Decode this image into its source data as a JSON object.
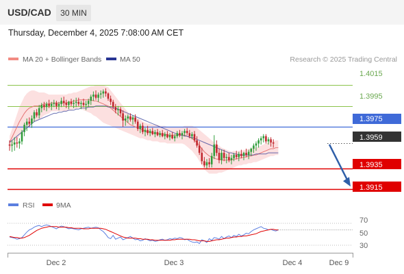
{
  "header": {
    "symbol": "USD/CAD",
    "timeframe": "30 MIN",
    "datetime": "Thursday, December 4, 2025 7:08:00 AM CET"
  },
  "legend": {
    "ma20_label": "MA 20 + Bollinger Bands",
    "ma50_label": "MA 50",
    "credit": "Research © 2025 Trading Central"
  },
  "rsi_legend": {
    "rsi_label": "RSI",
    "ma9_label": "9MA"
  },
  "colors": {
    "up_candle": "#2f9c3a",
    "down_candle": "#c0272d",
    "bollinger_fill": "#fbdada",
    "ma20": "#e57373",
    "ma50": "#283593",
    "resistance": "#8bc34a",
    "pivot": "#3f6ad8",
    "support": "#e00000",
    "current": "#333333",
    "rsi": "#5b7fe0",
    "rsi_ma": "#e00000",
    "arrow": "#2f5fa8"
  },
  "chart_data": {
    "type": "candlestick",
    "symbol": "USD/CAD",
    "timeframe": "30 MIN",
    "ylim": [
      1.3906,
      1.4035
    ],
    "levels": [
      {
        "value": 1.4015,
        "label": "1.4015",
        "kind": "resistance"
      },
      {
        "value": 1.3995,
        "label": "1.3995",
        "kind": "resistance"
      },
      {
        "value": 1.3975,
        "label": "1.3975",
        "kind": "pivot"
      },
      {
        "value": 1.3959,
        "label": "1.3959",
        "kind": "current"
      },
      {
        "value": 1.3935,
        "label": "1.3935",
        "kind": "support"
      },
      {
        "value": 1.3915,
        "label": "1.3915",
        "kind": "support"
      }
    ],
    "x_ticks": [
      {
        "label": "Dec 2",
        "index": 14
      },
      {
        "label": "Dec 3",
        "index": 62
      },
      {
        "label": "Dec 4",
        "index": 110
      },
      {
        "label": "Dec 9",
        "index": 133
      }
    ],
    "forecast": {
      "from": 1.3958,
      "to": 1.3915
    },
    "candles": [
      [
        1.3958,
        1.3962,
        1.3952,
        1.3957
      ],
      [
        1.3957,
        1.3962,
        1.3951,
        1.3958
      ],
      [
        1.3958,
        1.3965,
        1.3952,
        1.396
      ],
      [
        1.396,
        1.3965,
        1.3955,
        1.3959
      ],
      [
        1.3959,
        1.3964,
        1.3954,
        1.3961
      ],
      [
        1.3961,
        1.3972,
        1.3958,
        1.397
      ],
      [
        1.397,
        1.3979,
        1.3966,
        1.3977
      ],
      [
        1.3977,
        1.3983,
        1.3971,
        1.398
      ],
      [
        1.398,
        1.3984,
        1.3975,
        1.3978
      ],
      [
        1.3978,
        1.3986,
        1.3974,
        1.3983
      ],
      [
        1.3983,
        1.3991,
        1.398,
        1.3989
      ],
      [
        1.3989,
        1.3992,
        1.3984,
        1.3986
      ],
      [
        1.3986,
        1.3996,
        1.3983,
        1.3993
      ],
      [
        1.3993,
        1.3998,
        1.3989,
        1.3996
      ],
      [
        1.3996,
        1.3999,
        1.3991,
        1.3994
      ],
      [
        1.3994,
        1.3999,
        1.399,
        1.3997
      ],
      [
        1.3997,
        1.4001,
        1.3993,
        1.3995
      ],
      [
        1.3995,
        1.3999,
        1.3991,
        1.3997
      ],
      [
        1.3997,
        1.4001,
        1.3994,
        1.3998
      ],
      [
        1.3998,
        1.4,
        1.3992,
        1.3995
      ],
      [
        1.3995,
        1.3999,
        1.3991,
        1.3997
      ],
      [
        1.3997,
        1.4003,
        1.3994,
        1.4
      ],
      [
        1.4,
        1.4004,
        1.3995,
        1.3998
      ],
      [
        1.3998,
        1.4001,
        1.3993,
        1.3996
      ],
      [
        1.3996,
        1.4,
        1.3992,
        1.3999
      ],
      [
        1.3999,
        1.4002,
        1.3995,
        1.3997
      ],
      [
        1.3997,
        1.4001,
        1.3993,
        1.3998
      ],
      [
        1.3998,
        1.4003,
        1.3994,
        1.3999
      ],
      [
        1.3999,
        1.4003,
        1.3995,
        1.3997
      ],
      [
        1.3997,
        1.4,
        1.3992,
        1.3998
      ],
      [
        1.3998,
        1.4002,
        1.3994,
        1.3996
      ],
      [
        1.3996,
        1.4,
        1.3991,
        1.3997
      ],
      [
        1.3997,
        1.4002,
        1.3994,
        1.4
      ],
      [
        1.4,
        1.4006,
        1.3996,
        1.4004
      ],
      [
        1.4004,
        1.4009,
        1.4,
        1.4006
      ],
      [
        1.4006,
        1.401,
        1.4001,
        1.4003
      ],
      [
        1.4003,
        1.4008,
        1.3999,
        1.4006
      ],
      [
        1.4006,
        1.401,
        1.4002,
        1.4007
      ],
      [
        1.4007,
        1.4011,
        1.4003,
        1.4009
      ],
      [
        1.4009,
        1.4012,
        1.4004,
        1.4007
      ],
      [
        1.4007,
        1.4008,
        1.4,
        1.4002
      ],
      [
        1.4002,
        1.4005,
        1.3996,
        1.3999
      ],
      [
        1.3999,
        1.4001,
        1.3992,
        1.3994
      ],
      [
        1.3994,
        1.3997,
        1.3988,
        1.3991
      ],
      [
        1.3991,
        1.3995,
        1.3986,
        1.3992
      ],
      [
        1.3992,
        1.3994,
        1.3985,
        1.3988
      ],
      [
        1.3988,
        1.3991,
        1.3975,
        1.3981
      ],
      [
        1.3981,
        1.3986,
        1.3976,
        1.3983
      ],
      [
        1.3983,
        1.3987,
        1.3979,
        1.3985
      ],
      [
        1.3985,
        1.3988,
        1.398,
        1.3982
      ],
      [
        1.3982,
        1.3986,
        1.3977,
        1.3984
      ],
      [
        1.3984,
        1.3987,
        1.3978,
        1.398
      ],
      [
        1.398,
        1.3982,
        1.3971,
        1.3973
      ],
      [
        1.3973,
        1.3978,
        1.3969,
        1.3976
      ],
      [
        1.3976,
        1.3979,
        1.3968,
        1.397
      ],
      [
        1.397,
        1.3974,
        1.3966,
        1.3972
      ],
      [
        1.3972,
        1.3976,
        1.3967,
        1.3969
      ],
      [
        1.3969,
        1.3973,
        1.3966,
        1.3971
      ],
      [
        1.3971,
        1.3974,
        1.3967,
        1.3968
      ],
      [
        1.3968,
        1.3972,
        1.3965,
        1.397
      ],
      [
        1.397,
        1.3973,
        1.3966,
        1.3967
      ],
      [
        1.3967,
        1.3971,
        1.3965,
        1.3969
      ],
      [
        1.3969,
        1.3972,
        1.3965,
        1.3966
      ],
      [
        1.3966,
        1.397,
        1.3963,
        1.3968
      ],
      [
        1.3968,
        1.3971,
        1.3964,
        1.3965
      ],
      [
        1.3965,
        1.3969,
        1.3962,
        1.3967
      ],
      [
        1.3967,
        1.397,
        1.3963,
        1.3964
      ],
      [
        1.3964,
        1.3968,
        1.3961,
        1.3966
      ],
      [
        1.3966,
        1.3971,
        1.3964,
        1.3969
      ],
      [
        1.3969,
        1.3972,
        1.3965,
        1.3967
      ],
      [
        1.3967,
        1.3971,
        1.3963,
        1.3969
      ],
      [
        1.3969,
        1.3973,
        1.3966,
        1.3971
      ],
      [
        1.3971,
        1.3974,
        1.3967,
        1.3969
      ],
      [
        1.3969,
        1.3972,
        1.3964,
        1.3966
      ],
      [
        1.3966,
        1.397,
        1.3963,
        1.3968
      ],
      [
        1.3968,
        1.3971,
        1.396,
        1.3962
      ],
      [
        1.3962,
        1.3966,
        1.3955,
        1.3957
      ],
      [
        1.3957,
        1.3961,
        1.3948,
        1.395
      ],
      [
        1.395,
        1.3955,
        1.3939,
        1.3942
      ],
      [
        1.3942,
        1.3946,
        1.3936,
        1.3938
      ],
      [
        1.3938,
        1.3944,
        1.3935,
        1.3941
      ],
      [
        1.3941,
        1.3945,
        1.3936,
        1.3939
      ],
      [
        1.3939,
        1.395,
        1.3936,
        1.3947
      ],
      [
        1.3947,
        1.3967,
        1.3944,
        1.3958
      ],
      [
        1.3958,
        1.3962,
        1.3947,
        1.395
      ],
      [
        1.395,
        1.3954,
        1.394,
        1.3943
      ],
      [
        1.3943,
        1.3953,
        1.3939,
        1.395
      ],
      [
        1.395,
        1.3953,
        1.3942,
        1.3945
      ],
      [
        1.3945,
        1.3949,
        1.394,
        1.3946
      ],
      [
        1.3946,
        1.395,
        1.3941,
        1.3943
      ],
      [
        1.3943,
        1.3948,
        1.3939,
        1.3945
      ],
      [
        1.3945,
        1.395,
        1.3942,
        1.3948
      ],
      [
        1.3948,
        1.3952,
        1.3944,
        1.3946
      ],
      [
        1.3946,
        1.3951,
        1.3942,
        1.3949
      ],
      [
        1.3949,
        1.3953,
        1.3945,
        1.3947
      ],
      [
        1.3947,
        1.3951,
        1.3943,
        1.395
      ],
      [
        1.395,
        1.3954,
        1.3946,
        1.3948
      ],
      [
        1.3948,
        1.3953,
        1.3944,
        1.3951
      ],
      [
        1.3951,
        1.3955,
        1.3947,
        1.3954
      ],
      [
        1.3954,
        1.3959,
        1.395,
        1.3957
      ],
      [
        1.3957,
        1.3961,
        1.3952,
        1.3959
      ],
      [
        1.3959,
        1.3964,
        1.3955,
        1.3962
      ],
      [
        1.3962,
        1.3966,
        1.3958,
        1.3964
      ],
      [
        1.3964,
        1.3968,
        1.396,
        1.3966
      ],
      [
        1.3966,
        1.3968,
        1.3959,
        1.3961
      ],
      [
        1.3961,
        1.3965,
        1.3958,
        1.3963
      ],
      [
        1.3963,
        1.3965,
        1.3956,
        1.396
      ],
      [
        1.396,
        1.3963,
        1.3955,
        1.3959
      ]
    ],
    "ma20": [
      1.396,
      1.3965,
      1.397,
      1.3975,
      1.398,
      1.3984,
      1.3988,
      1.3991,
      1.3993,
      1.3994,
      1.3995,
      1.3995,
      1.3995,
      1.3996,
      1.3997,
      1.3997,
      1.3997,
      1.3998,
      1.3998,
      1.3998,
      1.3998,
      1.3998,
      1.3998,
      1.3998,
      1.3999,
      1.3999,
      1.4,
      1.4,
      1.4001,
      1.4001,
      1.4001,
      1.4001,
      1.4001,
      1.4001,
      1.4,
      1.4,
      1.3999,
      1.3998,
      1.3997,
      1.3996,
      1.3995,
      1.3993,
      1.3991,
      1.3989,
      1.3987,
      1.3985,
      1.3983,
      1.3981,
      1.3979,
      1.3977,
      1.3976,
      1.3975,
      1.3974,
      1.3973,
      1.3972,
      1.3971,
      1.397,
      1.397,
      1.3969,
      1.3969,
      1.3969,
      1.3968,
      1.3968,
      1.3968,
      1.3967,
      1.3967,
      1.3967,
      1.3967,
      1.3967,
      1.3967,
      1.3967,
      1.3967,
      1.3966,
      1.3965,
      1.3964,
      1.3962,
      1.396,
      1.3957,
      1.3954,
      1.3951,
      1.3949,
      1.3947,
      1.3946,
      1.3945,
      1.3944,
      1.3944,
      1.3943,
      1.3943,
      1.3943,
      1.3943,
      1.3943,
      1.3944,
      1.3944,
      1.3945,
      1.3945,
      1.3946,
      1.3946,
      1.3947,
      1.3947,
      1.3948,
      1.3948,
      1.3949,
      1.395,
      1.3951,
      1.3952,
      1.3953,
      1.3954,
      1.3954,
      1.3955,
      1.3955
    ],
    "ma50": [
      1.396,
      1.3962,
      1.3964,
      1.3966,
      1.3968,
      1.397,
      1.3972,
      1.3974,
      1.3976,
      1.3978,
      1.398,
      1.3981,
      1.3982,
      1.3983,
      1.3984,
      1.3985,
      1.3986,
      1.3987,
      1.3988,
      1.3988,
      1.3989,
      1.3989,
      1.399,
      1.399,
      1.3991,
      1.3991,
      1.3991,
      1.3992,
      1.3992,
      1.3993,
      1.3993,
      1.3993,
      1.3994,
      1.3994,
      1.3994,
      1.3995,
      1.3995,
      1.3995,
      1.3995,
      1.3995,
      1.3994,
      1.3994,
      1.3993,
      1.3993,
      1.3992,
      1.3991,
      1.399,
      1.3989,
      1.3988,
      1.3987,
      1.3986,
      1.3985,
      1.3984,
      1.3983,
      1.3982,
      1.3981,
      1.398,
      1.3979,
      1.3978,
      1.3977,
      1.3976,
      1.3975,
      1.3974,
      1.3973,
      1.3972,
      1.3971,
      1.397,
      1.3969,
      1.3968,
      1.3967,
      1.3967,
      1.3966,
      1.3966,
      1.3965,
      1.3965,
      1.3964,
      1.3963,
      1.3962,
      1.3961,
      1.396,
      1.3959,
      1.3958,
      1.3957,
      1.3956,
      1.3955,
      1.3954,
      1.3953,
      1.3952,
      1.3951,
      1.395,
      1.395,
      1.3949,
      1.3949,
      1.3948,
      1.3948,
      1.3948,
      1.3948,
      1.3948,
      1.3948,
      1.3948,
      1.3949,
      1.3949,
      1.3949,
      1.3949,
      1.3949,
      1.395,
      1.395,
      1.395,
      1.395,
      1.395
    ],
    "bollinger_width": [
      0.0006,
      0.0008,
      0.001,
      0.0012,
      0.0014,
      0.0015,
      0.0016,
      0.0016,
      0.0016,
      0.0016,
      0.0015,
      0.0014,
      0.0013,
      0.0012,
      0.0011,
      0.001,
      0.0009,
      0.0008,
      0.0008,
      0.0008,
      0.0008,
      0.0008,
      0.0008,
      0.0008,
      0.0008,
      0.0008,
      0.0008,
      0.0008,
      0.0008,
      0.0009,
      0.001,
      0.0011,
      0.0012,
      0.0013,
      0.0014,
      0.0015,
      0.0016,
      0.0017,
      0.0018,
      0.0018,
      0.0018,
      0.0017,
      0.0016,
      0.0015,
      0.0014,
      0.0013,
      0.0012,
      0.0011,
      0.001,
      0.0009,
      0.0009,
      0.0009,
      0.0009,
      0.0009,
      0.0008,
      0.0008,
      0.0008,
      0.0008,
      0.0008,
      0.0008,
      0.0008,
      0.0008,
      0.0008,
      0.0008,
      0.0008,
      0.0008,
      0.0008,
      0.0008,
      0.0008,
      0.0008,
      0.0008,
      0.0009,
      0.001,
      0.0011,
      0.0012,
      0.0013,
      0.0014,
      0.0015,
      0.0016,
      0.0017,
      0.0017,
      0.0017,
      0.0016,
      0.0015,
      0.0014,
      0.0013,
      0.0012,
      0.0011,
      0.001,
      0.0009,
      0.0008,
      0.0008,
      0.0007,
      0.0007,
      0.0007,
      0.0007,
      0.0007,
      0.0007,
      0.0007,
      0.0007,
      0.0007,
      0.0007,
      0.0007,
      0.0007,
      0.0007,
      0.0007,
      0.0007,
      0.0007,
      0.0007,
      0.0007
    ],
    "rsi": {
      "ylim": [
        20,
        80
      ],
      "ticks": [
        70,
        50,
        30
      ],
      "guides": [
        70,
        30
      ],
      "rsi": [
        45,
        44,
        43,
        41,
        42,
        44,
        49,
        54,
        58,
        60,
        63,
        65,
        66,
        64,
        66,
        67,
        66,
        64,
        62,
        60,
        63,
        65,
        64,
        62,
        60,
        61,
        60,
        59,
        58,
        60,
        61,
        62,
        63,
        61,
        62,
        63,
        62,
        58,
        55,
        50,
        44,
        42,
        48,
        41,
        43,
        45,
        40,
        42,
        44,
        46,
        43,
        40,
        41,
        38,
        39,
        42,
        40,
        38,
        39,
        37,
        38,
        40,
        41,
        39,
        40,
        42,
        41,
        43,
        42,
        44,
        43,
        40,
        41,
        38,
        36,
        35,
        36,
        33,
        40,
        38,
        35,
        42,
        39,
        44,
        43,
        41,
        46,
        42,
        45,
        47,
        44,
        48,
        46,
        50,
        47,
        49,
        52,
        51,
        55,
        58,
        60,
        62,
        64,
        61,
        60,
        58,
        59,
        57,
        56,
        58
      ],
      "ma": [
        46,
        45,
        44,
        44,
        43,
        43,
        44,
        46,
        48,
        51,
        54,
        57,
        59,
        61,
        62,
        63,
        64,
        64,
        64,
        64,
        63,
        63,
        63,
        63,
        62,
        62,
        61,
        61,
        61,
        61,
        60,
        60,
        60,
        61,
        61,
        61,
        61,
        61,
        60,
        59,
        57,
        55,
        53,
        51,
        49,
        47,
        45,
        44,
        43,
        43,
        43,
        43,
        42,
        42,
        41,
        41,
        41,
        40,
        40,
        39,
        39,
        39,
        39,
        39,
        39,
        39,
        40,
        40,
        41,
        41,
        41,
        41,
        41,
        41,
        40,
        40,
        39,
        38,
        38,
        38,
        37,
        37,
        38,
        39,
        40,
        40,
        41,
        42,
        43,
        43,
        44,
        45,
        45,
        46,
        46,
        47,
        47,
        48,
        49,
        50,
        51,
        53,
        55,
        56,
        57,
        58,
        59,
        59,
        58,
        58
      ]
    }
  },
  "level_labels": {
    "r1": "1.4015",
    "r2": "1.3995",
    "pivot": "1.3975",
    "current": "1.3959",
    "s1": "1.3935",
    "s2": "1.3915"
  },
  "x_labels": {
    "d1": "Dec 2",
    "d2": "Dec 3",
    "d3": "Dec 4",
    "d4": "Dec 9"
  },
  "rsi_tick_labels": {
    "t70": "70",
    "t50": "50",
    "t30": "30"
  }
}
